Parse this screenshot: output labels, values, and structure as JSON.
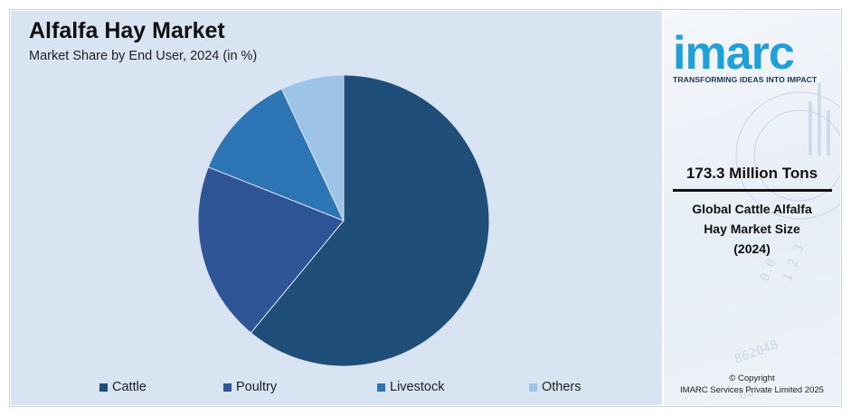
{
  "chart_data": {
    "type": "pie",
    "title": "Alfalfa Hay Market",
    "subtitle": "Market Share by End User, 2024 (in %)",
    "categories": [
      "Cattle",
      "Poultry",
      "Livestock",
      "Others"
    ],
    "values": [
      61,
      20,
      12,
      7
    ],
    "colors": [
      "#1f4e79",
      "#2f5597",
      "#2e75b6",
      "#9dc3e6"
    ],
    "legend_position": "bottom"
  },
  "brand": {
    "logo_text": "imarc",
    "tagline": "TRANSFORMING IDEAS INTO IMPACT",
    "accent_color": "#1fa0d8"
  },
  "stat": {
    "value": "173.3 Million Tons",
    "label_line1": "Global Cattle Alfalfa",
    "label_line2": "Hay Market Size",
    "label_line3": "(2024)"
  },
  "footer": {
    "copyright_line1": "© Copyright",
    "copyright_line2": "IMARC Services Private Limited 2025"
  }
}
